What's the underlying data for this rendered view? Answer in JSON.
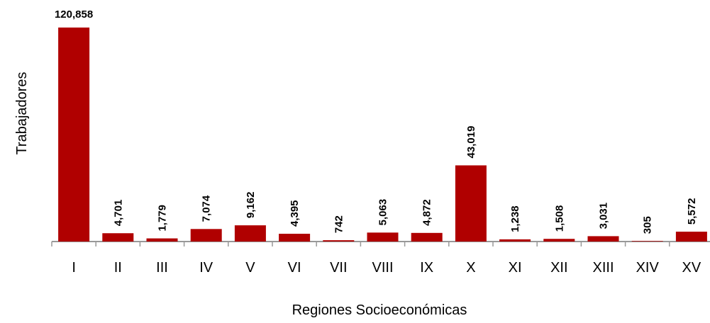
{
  "chart_data": {
    "type": "bar",
    "x_label": "Regiones Socioeconómicas",
    "y_label": "Trabajadores",
    "categories": [
      "I",
      "II",
      "III",
      "IV",
      "V",
      "VI",
      "VII",
      "VIII",
      "IX",
      "X",
      "XI",
      "XII",
      "XIII",
      "XIV",
      "XV"
    ],
    "values": [
      120858,
      4701,
      1779,
      7074,
      9162,
      4395,
      742,
      5063,
      4872,
      43019,
      1238,
      1508,
      3031,
      305,
      5572
    ],
    "value_labels": [
      "120,858",
      "4,701",
      "1,779",
      "7,074",
      "9,162",
      "4,395",
      "742",
      "5,063",
      "4,872",
      "43,019",
      "1,238",
      "1,508",
      "3,031",
      "305",
      "5,572"
    ],
    "color": "#b00000",
    "ylim": [
      0,
      130000
    ]
  }
}
